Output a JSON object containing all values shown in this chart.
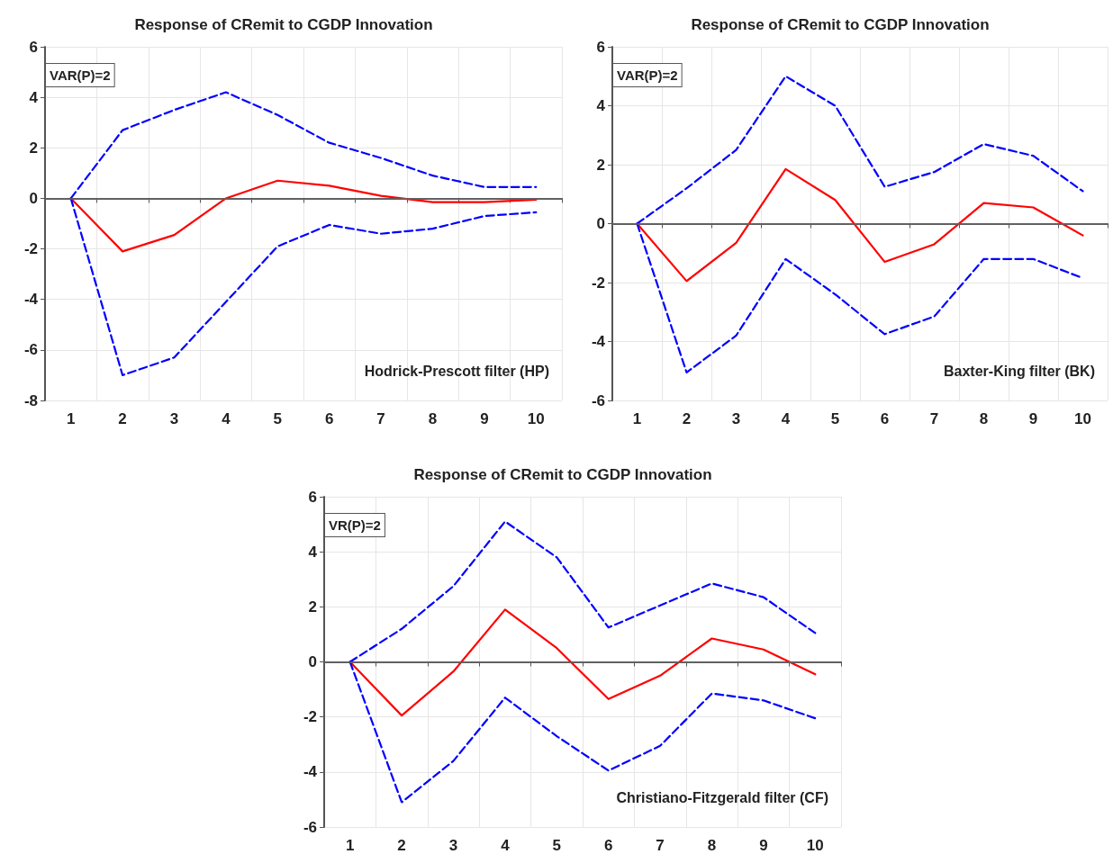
{
  "chart_data": [
    {
      "type": "line",
      "title": "Response of CRemit to CGDP Innovation",
      "annotations": [
        "VAR(P)=2",
        "Hodrick-Prescott filter (HP)"
      ],
      "categories": [
        "1",
        "2",
        "3",
        "4",
        "5",
        "6",
        "7",
        "8",
        "9",
        "10"
      ],
      "ylim": [
        -8,
        6
      ],
      "yticks": [
        -8,
        -6,
        -4,
        -2,
        0,
        2,
        4,
        6
      ],
      "grid": true,
      "marker": "none",
      "ref_lines": [
        {
          "axis": "y",
          "value": 0,
          "color": "#666666"
        }
      ],
      "series": [
        {
          "color": "#0000ff",
          "line_style": "dashed",
          "values": [
            0,
            2.7,
            3.5,
            4.2,
            3.3,
            2.2,
            1.6,
            0.9,
            0.45,
            0.45
          ]
        },
        {
          "color": "#ff0000",
          "line_style": "solid",
          "values": [
            0,
            -2.1,
            -1.45,
            0,
            0.7,
            0.5,
            0.1,
            -0.15,
            -0.15,
            -0.05
          ]
        },
        {
          "color": "#0000ff",
          "line_style": "dashed",
          "values": [
            0,
            -7.0,
            -6.3,
            -4.1,
            -1.9,
            -1.05,
            -1.4,
            -1.2,
            -0.7,
            -0.55
          ]
        }
      ]
    },
    {
      "type": "line",
      "title": "Response of CRemit to CGDP Innovation",
      "annotations": [
        "VAR(P)=2",
        "Baxter-King filter (BK)"
      ],
      "categories": [
        "1",
        "2",
        "3",
        "4",
        "5",
        "6",
        "7",
        "8",
        "9",
        "10"
      ],
      "ylim": [
        -6,
        6
      ],
      "yticks": [
        -6,
        -4,
        -2,
        0,
        2,
        4,
        6
      ],
      "grid": true,
      "marker": "none",
      "ref_lines": [
        {
          "axis": "y",
          "value": 0,
          "color": "#666666"
        }
      ],
      "series": [
        {
          "color": "#0000ff",
          "line_style": "dashed",
          "values": [
            0,
            1.2,
            2.5,
            5.0,
            4.0,
            1.25,
            1.75,
            2.7,
            2.3,
            1.1
          ]
        },
        {
          "color": "#ff0000",
          "line_style": "solid",
          "values": [
            0,
            -1.95,
            -0.65,
            1.85,
            0.8,
            -1.3,
            -0.7,
            0.7,
            0.55,
            -0.4
          ]
        },
        {
          "color": "#0000ff",
          "line_style": "dashed",
          "values": [
            0,
            -5.05,
            -3.8,
            -1.2,
            -2.4,
            -3.75,
            -3.15,
            -1.2,
            -1.2,
            -1.85
          ]
        }
      ]
    },
    {
      "type": "line",
      "title": "Response of CRemit to CGDP Innovation",
      "annotations": [
        "VR(P)=2",
        "Christiano-Fitzgerald filter (CF)"
      ],
      "categories": [
        "1",
        "2",
        "3",
        "4",
        "5",
        "6",
        "7",
        "8",
        "9",
        "10"
      ],
      "ylim": [
        -6,
        6
      ],
      "yticks": [
        -6,
        -4,
        -2,
        0,
        2,
        4,
        6
      ],
      "grid": true,
      "marker": "none",
      "ref_lines": [
        {
          "axis": "y",
          "value": 0,
          "color": "#666666"
        }
      ],
      "series": [
        {
          "color": "#0000ff",
          "line_style": "dashed",
          "values": [
            0,
            1.2,
            2.75,
            5.1,
            3.8,
            1.25,
            2.05,
            2.85,
            2.35,
            1.05
          ]
        },
        {
          "color": "#ff0000",
          "line_style": "solid",
          "values": [
            0,
            -1.95,
            -0.35,
            1.9,
            0.5,
            -1.35,
            -0.5,
            0.85,
            0.45,
            -0.45
          ]
        },
        {
          "color": "#0000ff",
          "line_style": "dashed",
          "values": [
            0,
            -5.1,
            -3.6,
            -1.3,
            -2.7,
            -3.95,
            -3.05,
            -1.15,
            -1.4,
            -2.05
          ]
        }
      ]
    }
  ]
}
